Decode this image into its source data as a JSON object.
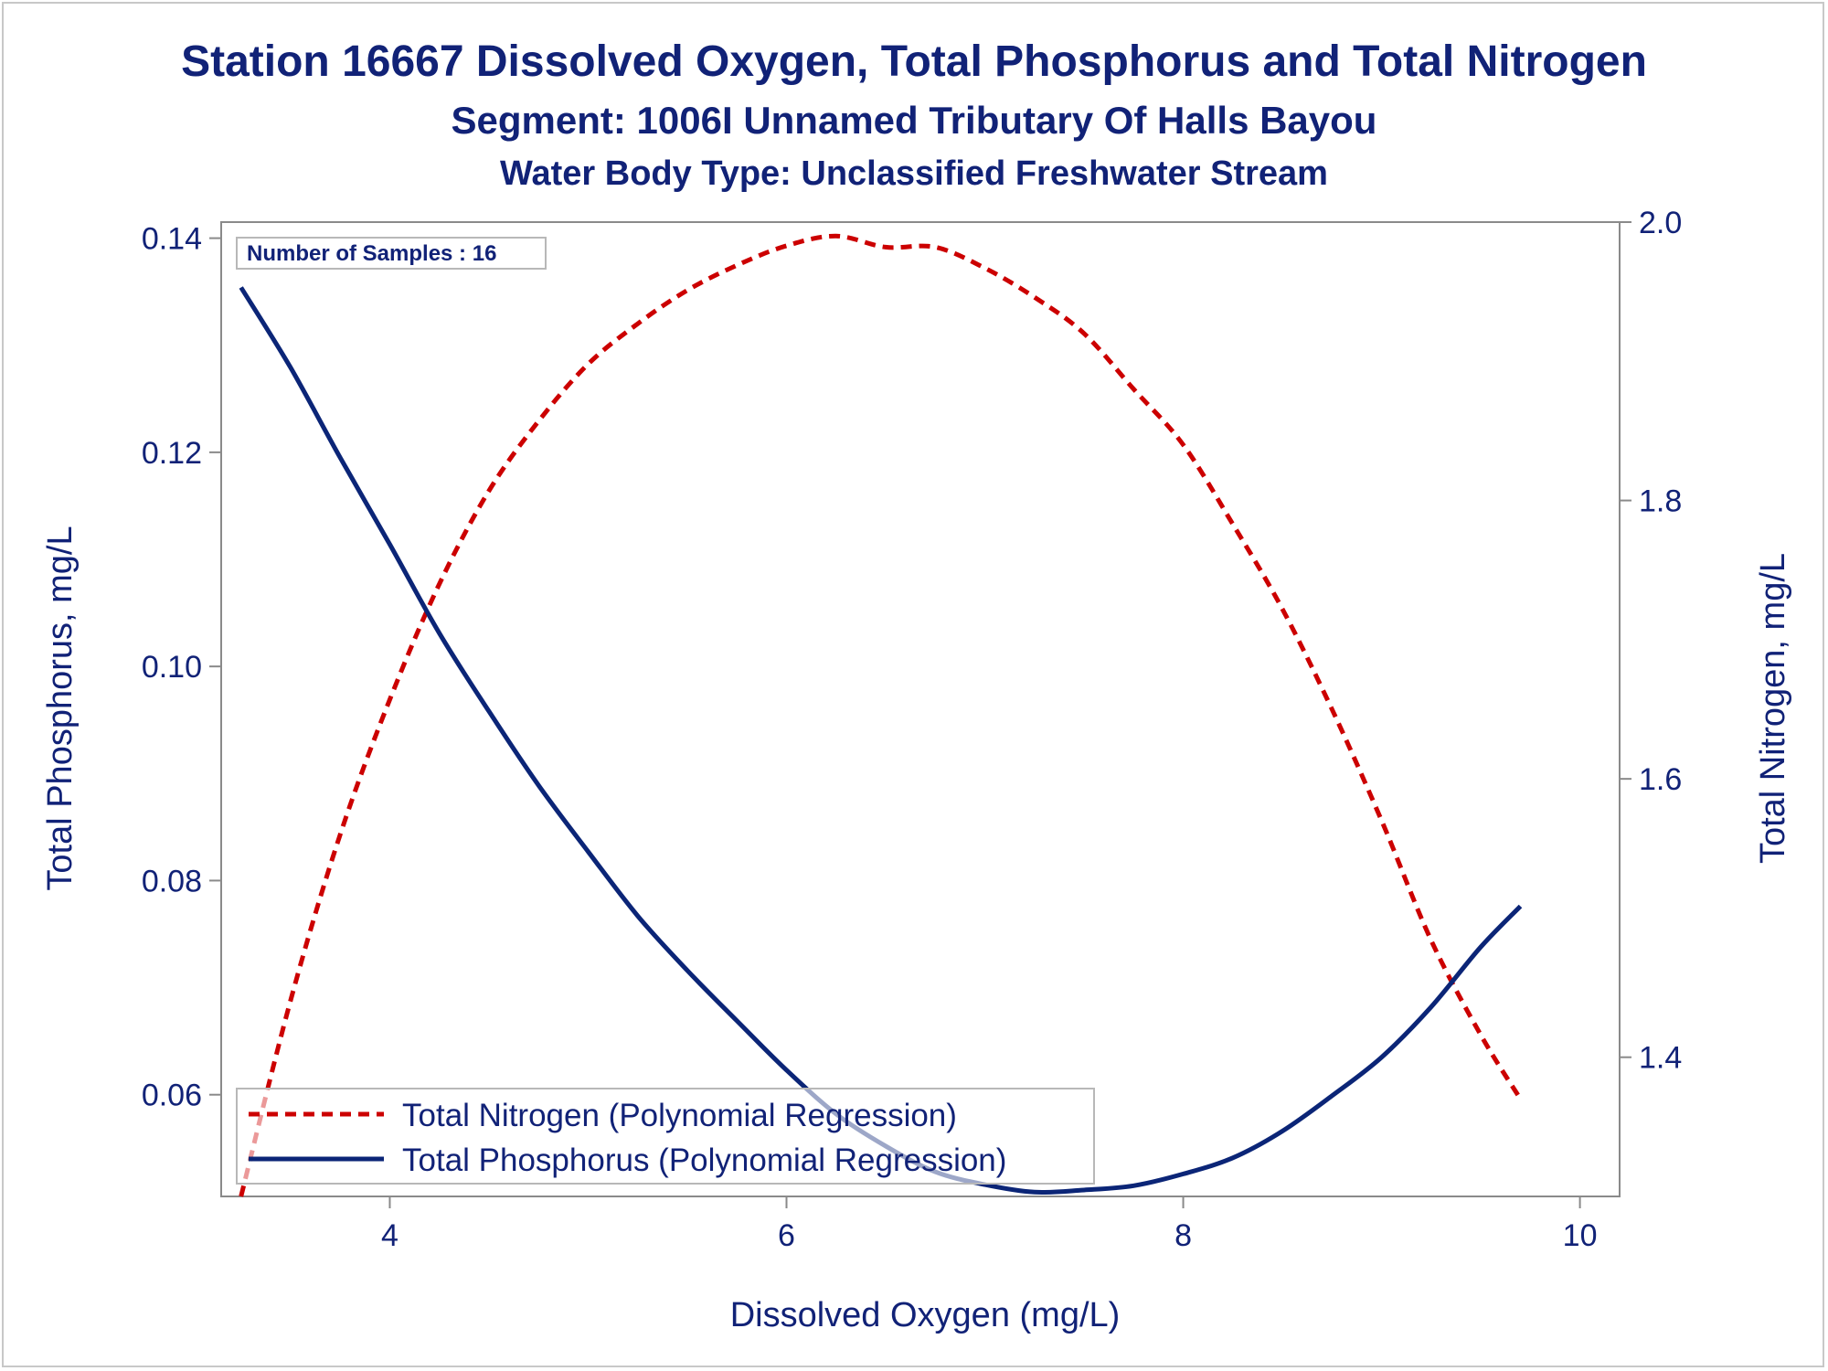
{
  "titles": {
    "line1": "Station 16667  Dissolved Oxygen, Total Phosphorus and Total Nitrogen",
    "line2": "Segment: 1006I  Unnamed Tributary Of Halls Bayou",
    "line3": "Water Body Type: Unclassified Freshwater Stream"
  },
  "colors": {
    "text": "#112277",
    "nitrogen": "#cc0000",
    "phosphorus": "#0b2577",
    "axis": "#8a8a8a"
  },
  "chart_data": {
    "type": "line",
    "title": "Station 16667  Dissolved Oxygen, Total Phosphorus and Total Nitrogen",
    "xlabel": "Dissolved Oxygen (mg/L)",
    "ylabel": "Total Phosphorus, mg/L",
    "y2label": "Total Nitrogen, mg/L",
    "xlim": [
      3.15,
      10.2
    ],
    "ylim": [
      0.0505,
      0.1415
    ],
    "y2lim": [
      1.3,
      2.0
    ],
    "xticks": [
      4,
      6,
      8,
      10
    ],
    "xtick_labels": [
      "4",
      "6",
      "8",
      "10"
    ],
    "yticks": [
      0.06,
      0.08,
      0.1,
      0.12,
      0.14
    ],
    "ytick_labels": [
      "0.06",
      "0.08",
      "0.10",
      "0.12",
      "0.14"
    ],
    "y2ticks": [
      1.4,
      1.6,
      1.8,
      2.0
    ],
    "y2tick_labels": [
      "1.4",
      "1.6",
      "1.8",
      "2.0"
    ],
    "grid": false,
    "annotation": "Number of Samples : 16",
    "legend_position": "bottom-left inside",
    "series": [
      {
        "name": "Total Nitrogen (Polynomial Regression)",
        "axis": "y2",
        "style": "dashed",
        "color": "#cc0000",
        "x": [
          3.25,
          3.5,
          3.75,
          4.0,
          4.25,
          4.5,
          4.75,
          5.0,
          5.25,
          5.5,
          5.75,
          6.0,
          6.25,
          6.5,
          6.75,
          7.0,
          7.25,
          7.5,
          7.75,
          8.0,
          8.25,
          8.5,
          8.75,
          9.0,
          9.25,
          9.5,
          9.7
        ],
        "values": [
          1.3,
          1.441,
          1.56,
          1.657,
          1.74,
          1.807,
          1.857,
          1.898,
          1.927,
          1.951,
          1.969,
          1.983,
          1.99,
          1.982,
          1.982,
          1.967,
          1.946,
          1.92,
          1.88,
          1.84,
          1.783,
          1.722,
          1.65,
          1.57,
          1.484,
          1.416,
          1.37
        ]
      },
      {
        "name": "Total Phosphorus (Polynomial Regression)",
        "axis": "y",
        "style": "solid",
        "color": "#0b2577",
        "x": [
          3.25,
          3.5,
          3.75,
          4.0,
          4.25,
          4.5,
          4.75,
          5.0,
          5.25,
          5.5,
          5.75,
          6.0,
          6.25,
          6.5,
          6.75,
          7.0,
          7.25,
          7.5,
          7.75,
          8.0,
          8.25,
          8.5,
          8.75,
          9.0,
          9.25,
          9.5,
          9.7
        ],
        "values": [
          0.1354,
          0.1279,
          0.1195,
          0.1114,
          0.1031,
          0.0958,
          0.0889,
          0.0827,
          0.0767,
          0.0716,
          0.0669,
          0.0623,
          0.0582,
          0.0552,
          0.0528,
          0.0516,
          0.0509,
          0.0511,
          0.0515,
          0.0526,
          0.0541,
          0.0566,
          0.0599,
          0.0635,
          0.0682,
          0.0738,
          0.0776
        ]
      }
    ]
  }
}
